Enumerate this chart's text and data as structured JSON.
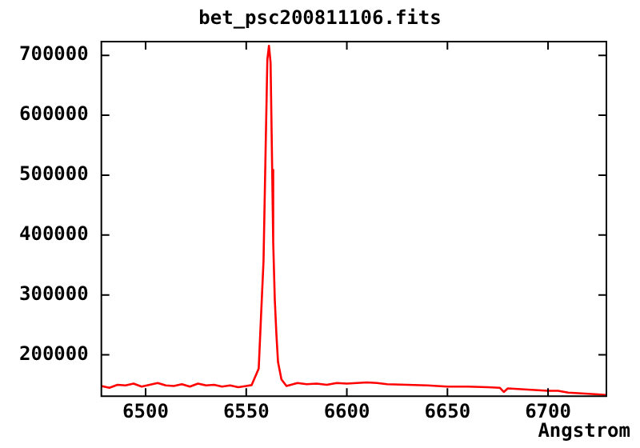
{
  "chart_data": {
    "type": "line",
    "title": "bet_psc200811106.fits",
    "xlabel": "Angstrom",
    "x": [
      6478,
      6482,
      6486,
      6490,
      6494,
      6498,
      6502,
      6506,
      6510,
      6514,
      6518,
      6522,
      6526,
      6530,
      6534,
      6538,
      6542,
      6546,
      6550,
      6552.7,
      6556.2,
      6557.3,
      6558.6,
      6559.7,
      6560.5,
      6561.3,
      6562.1,
      6562.9,
      6563.4,
      6564.2,
      6565,
      6565.8,
      6567.5,
      6570,
      6575.5,
      6580,
      6585,
      6590,
      6595,
      6600,
      6605,
      6610,
      6615,
      6620,
      6630,
      6640,
      6650,
      6660,
      6670,
      6676,
      6678,
      6680,
      6685,
      6690,
      6700,
      6705,
      6710,
      6715,
      6720,
      6725,
      6729
    ],
    "series": [
      {
        "color": "#ff0000",
        "values": [
          148000,
          145000,
          150000,
          149000,
          152000,
          147000,
          150000,
          153000,
          149000,
          148000,
          151000,
          147000,
          152000,
          149000,
          150000,
          147000,
          149000,
          146000,
          148000,
          149500,
          177000,
          260000,
          357000,
          554000,
          693000,
          716000,
          688000,
          509000,
          389000,
          292000,
          234000,
          188000,
          159000,
          148000,
          153000,
          151000,
          152000,
          150000,
          153000,
          152000,
          153000,
          154000,
          153000,
          151000,
          150000,
          149000,
          147000,
          147000,
          146000,
          145000,
          138000,
          144000,
          143000,
          142000,
          140000,
          140000,
          137000,
          136000,
          135000,
          134000,
          133000
        ]
      }
    ],
    "xlim": [
      6478,
      6729
    ],
    "ylim": [
      131000,
      723000
    ],
    "xticks": [
      6500,
      6550,
      6600,
      6650,
      6700
    ],
    "yticks": [
      200000,
      300000,
      400000,
      500000,
      600000,
      700000
    ],
    "grid": false,
    "legend": false,
    "marker": "none",
    "line_style": "solid"
  }
}
